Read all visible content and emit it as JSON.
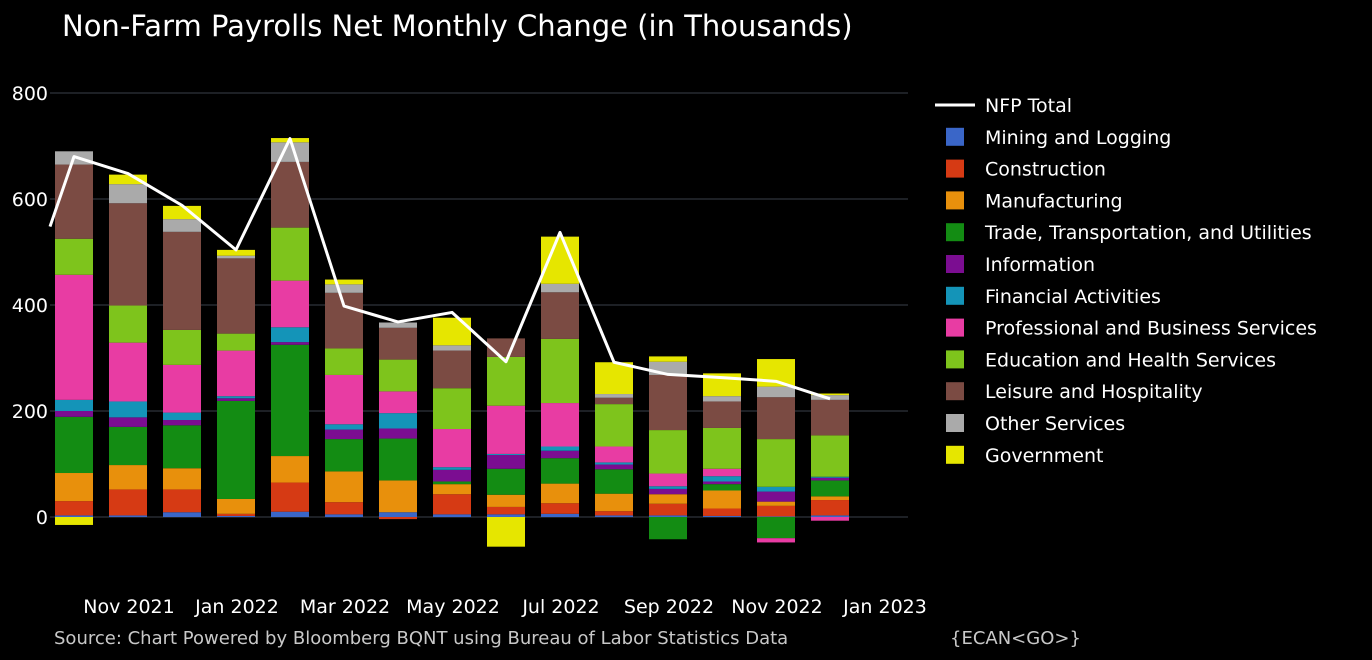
{
  "chart_data": {
    "type": "bar",
    "stacked": true,
    "title": "Non-Farm Payrolls Net Monthly Change (in Thousands)",
    "source": "Source: Chart Powered by Bloomberg BQNT using Bureau of Labor Statistics Data",
    "source_code": "{ECAN<GO>}",
    "ylim": [
      -75,
      850
    ],
    "yticks": [
      0,
      200,
      400,
      600,
      800
    ],
    "grid": true,
    "legend_position": "right",
    "xtick_labels": [
      {
        "label": "Nov 2021",
        "at": "Nov 2021"
      },
      {
        "label": "Jan 2022",
        "at": "Jan 2022"
      },
      {
        "label": "Mar 2022",
        "at": "Mar 2022"
      },
      {
        "label": "May 2022",
        "at": "May 2022"
      },
      {
        "label": "Jul 2022",
        "at": "Jul 2022"
      },
      {
        "label": "Sep 2022",
        "at": "Sep 2022"
      },
      {
        "label": "Nov 2022",
        "at": "Nov 2022"
      },
      {
        "label": "Jan 2023",
        "at": "Jan 2023"
      }
    ],
    "categories": [
      "Oct 2021",
      "Nov 2021",
      "Dec 2021",
      "Jan 2022",
      "Feb 2022",
      "Mar 2022",
      "Apr 2022",
      "May 2022",
      "Jun 2022",
      "Jul 2022",
      "Aug 2022",
      "Sep 2022",
      "Oct 2022",
      "Nov 2022",
      "Dec 2022"
    ],
    "line": {
      "name": "NFP Total",
      "color": "#ffffff",
      "values": [
        680,
        648,
        588,
        504,
        714,
        398,
        368,
        386,
        293,
        537,
        292,
        269,
        263,
        256,
        223
      ]
    },
    "line_extension_start": 548,
    "series": [
      {
        "name": "Mining and Logging",
        "color": "#3a66c8",
        "values": [
          3,
          3,
          9,
          2,
          10,
          5,
          9,
          5,
          5,
          6,
          3,
          3,
          2,
          1,
          3
        ]
      },
      {
        "name": "Construction",
        "color": "#d63a14",
        "values": [
          27,
          49,
          43,
          4,
          55,
          23,
          -4,
          38,
          14,
          20,
          8,
          22,
          14,
          20,
          29
        ]
      },
      {
        "name": "Manufacturing",
        "color": "#e8900c",
        "values": [
          53,
          46,
          40,
          28,
          50,
          58,
          60,
          19,
          23,
          37,
          33,
          18,
          34,
          8,
          7
        ]
      },
      {
        "name": "Trade, Transportation, and Utilities",
        "color": "#138c13",
        "values": [
          106,
          72,
          81,
          185,
          210,
          61,
          79,
          5,
          49,
          48,
          46,
          -42,
          12,
          -40,
          30
        ]
      },
      {
        "name": "Information",
        "color": "#7b0d91",
        "values": [
          11,
          18,
          10,
          5,
          5,
          18,
          19,
          22,
          26,
          14,
          9,
          10,
          5,
          19,
          5
        ]
      },
      {
        "name": "Financial Activities",
        "color": "#1494b8",
        "values": [
          21,
          30,
          14,
          4,
          28,
          10,
          29,
          5,
          2,
          8,
          4,
          5,
          10,
          9,
          2
        ]
      },
      {
        "name": "Professional and Business Services",
        "color": "#e83ca3",
        "values": [
          236,
          111,
          90,
          86,
          88,
          93,
          41,
          72,
          91,
          82,
          30,
          24,
          14,
          -8,
          -7
        ]
      },
      {
        "name": "Education and Health Services",
        "color": "#7ec41c",
        "values": [
          68,
          70,
          66,
          32,
          100,
          50,
          60,
          77,
          92,
          121,
          80,
          82,
          77,
          90,
          78
        ]
      },
      {
        "name": "Leisure and Hospitality",
        "color": "#7b4b43",
        "values": [
          140,
          193,
          185,
          142,
          124,
          105,
          60,
          71,
          35,
          88,
          12,
          104,
          50,
          79,
          67
        ]
      },
      {
        "name": "Other Services",
        "color": "#aaaaaa",
        "values": [
          25,
          36,
          24,
          5,
          37,
          16,
          10,
          10,
          0,
          16,
          7,
          25,
          10,
          20,
          9
        ]
      },
      {
        "name": "Government",
        "color": "#e6e600",
        "values": [
          -15,
          18,
          25,
          11,
          8,
          9,
          0,
          52,
          -56,
          89,
          60,
          10,
          43,
          52,
          3
        ]
      }
    ]
  }
}
